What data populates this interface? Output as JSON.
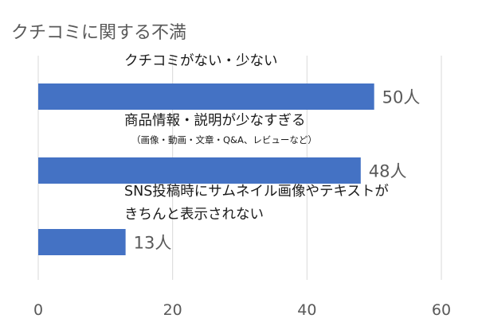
{
  "chart_data": {
    "type": "bar",
    "orientation": "horizontal",
    "title": "クチコミに関する不満",
    "categories": [
      {
        "lines": [
          "クチコミがない・少ない"
        ],
        "sub": ""
      },
      {
        "lines": [
          "商品情報・説明が少なすぎる"
        ],
        "sub": "（画像・動画・文章・Q&A、レビューなど）"
      },
      {
        "lines": [
          "SNS投稿時にサムネイル画像やテキストが",
          "きちんと表示されない"
        ],
        "sub": ""
      }
    ],
    "values": [
      50,
      48,
      13
    ],
    "value_labels": [
      "50人",
      "48人",
      "13人"
    ],
    "xlim": [
      0,
      60
    ],
    "xticks": [
      0,
      20,
      40,
      60
    ],
    "grid": true,
    "bar_color": "#4472C4",
    "grid_color": "#d9d9d9"
  }
}
